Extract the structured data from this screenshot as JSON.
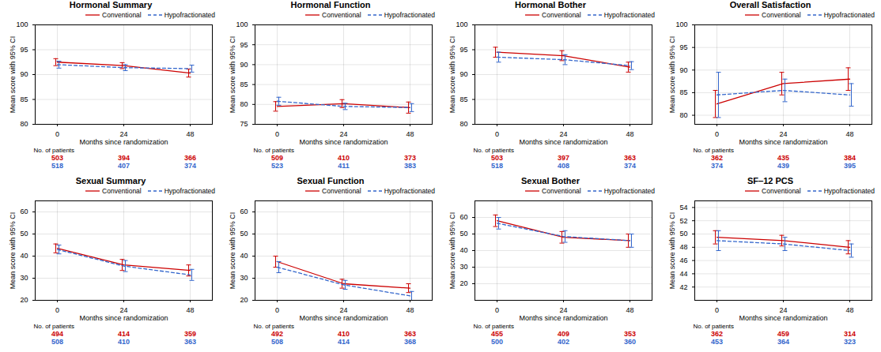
{
  "chart_data": [
    {
      "type": "line",
      "title": "Hormonal Summary",
      "xlabel": "Months since randomization",
      "ylabel": "Mean score with 95% CI",
      "x": [
        0,
        24,
        48
      ],
      "xlim": [
        -8,
        56
      ],
      "xticks": [
        0,
        24,
        48
      ],
      "ylim": [
        80,
        100
      ],
      "yticks": [
        80,
        85,
        90,
        95,
        100
      ],
      "grid": true,
      "legend": "upper right",
      "table_title": "No. of patients",
      "series": [
        {
          "name": "Conventional",
          "color": "#cc0000",
          "line_style": "solid",
          "values": [
            92.5,
            91.8,
            90.3
          ],
          "lower": [
            91.8,
            91.2,
            89.5
          ],
          "upper": [
            93.2,
            92.4,
            91.1
          ],
          "patients": [
            503,
            394,
            366
          ]
        },
        {
          "name": "Hypofractionated",
          "color": "#3366cc",
          "line_style": "dashed",
          "values": [
            92.0,
            91.4,
            91.2
          ],
          "lower": [
            91.3,
            90.8,
            90.5
          ],
          "upper": [
            92.7,
            92.0,
            91.9
          ],
          "patients": [
            518,
            407,
            374
          ]
        }
      ]
    },
    {
      "type": "line",
      "title": "Hormonal Function",
      "xlabel": "Months since randomization",
      "ylabel": "Mean score with 95% CI",
      "x": [
        0,
        24,
        48
      ],
      "xlim": [
        -8,
        56
      ],
      "xticks": [
        0,
        24,
        48
      ],
      "ylim": [
        75,
        100
      ],
      "yticks": [
        75,
        80,
        85,
        90,
        95,
        100
      ],
      "grid": true,
      "legend": "upper right",
      "table_title": "No. of patients",
      "series": [
        {
          "name": "Conventional",
          "color": "#cc0000",
          "line_style": "solid",
          "values": [
            79.5,
            80.2,
            79.2
          ],
          "lower": [
            78.3,
            79.2,
            77.8
          ],
          "upper": [
            80.7,
            81.2,
            80.6
          ],
          "patients": [
            509,
            410,
            373
          ]
        },
        {
          "name": "Hypofractionated",
          "color": "#3366cc",
          "line_style": "dashed",
          "values": [
            80.8,
            79.5,
            79.2
          ],
          "lower": [
            79.8,
            78.7,
            78.2
          ],
          "upper": [
            81.8,
            80.3,
            80.2
          ],
          "patients": [
            523,
            411,
            383
          ]
        }
      ]
    },
    {
      "type": "line",
      "title": "Hormonal Bother",
      "xlabel": "Months since randomization",
      "ylabel": "Mean score with 95% CI",
      "x": [
        0,
        24,
        48
      ],
      "xlim": [
        -8,
        56
      ],
      "xticks": [
        0,
        24,
        48
      ],
      "ylim": [
        80,
        100
      ],
      "yticks": [
        80,
        85,
        90,
        95,
        100
      ],
      "grid": true,
      "legend": "upper right",
      "table_title": "No. of patients",
      "series": [
        {
          "name": "Conventional",
          "color": "#cc0000",
          "line_style": "solid",
          "values": [
            94.5,
            93.8,
            91.5
          ],
          "lower": [
            93.5,
            92.8,
            90.5
          ],
          "upper": [
            95.5,
            94.8,
            92.5
          ],
          "patients": [
            503,
            397,
            363
          ]
        },
        {
          "name": "Hypofractionated",
          "color": "#3366cc",
          "line_style": "dashed",
          "values": [
            93.5,
            93.0,
            91.8
          ],
          "lower": [
            92.5,
            92.0,
            91.0
          ],
          "upper": [
            94.5,
            94.0,
            92.6
          ],
          "patients": [
            518,
            408,
            374
          ]
        }
      ]
    },
    {
      "type": "line",
      "title": "Overall Satisfaction",
      "xlabel": "Months since randomization",
      "ylabel": "Mean score with 95% CI",
      "x": [
        0,
        24,
        48
      ],
      "xlim": [
        -8,
        56
      ],
      "xticks": [
        0,
        24,
        48
      ],
      "ylim": [
        78,
        100
      ],
      "yticks": [
        80,
        85,
        90,
        95,
        100
      ],
      "grid": true,
      "legend": "upper right",
      "table_title": "No. of patients",
      "series": [
        {
          "name": "Conventional",
          "color": "#cc0000",
          "line_style": "solid",
          "values": [
            82.5,
            87.0,
            88.0
          ],
          "lower": [
            79.5,
            84.5,
            85.5
          ],
          "upper": [
            85.5,
            89.5,
            90.5
          ],
          "patients": [
            362,
            435,
            384
          ]
        },
        {
          "name": "Hypofractionated",
          "color": "#3366cc",
          "line_style": "dashed",
          "values": [
            84.5,
            85.5,
            84.5
          ],
          "lower": [
            79.5,
            83.0,
            82.0
          ],
          "upper": [
            89.5,
            88.0,
            87.0
          ],
          "patients": [
            374,
            439,
            395
          ]
        }
      ]
    },
    {
      "type": "line",
      "title": "Sexual Summary",
      "xlabel": "Months since randomization",
      "ylabel": "Mean score with 95% CI",
      "x": [
        0,
        24,
        48
      ],
      "xlim": [
        -8,
        56
      ],
      "xticks": [
        0,
        24,
        48
      ],
      "ylim": [
        20,
        65
      ],
      "yticks": [
        20,
        30,
        40,
        50,
        60
      ],
      "grid": true,
      "legend": "upper right",
      "table_title": "No. of patients",
      "series": [
        {
          "name": "Conventional",
          "color": "#cc0000",
          "line_style": "solid",
          "values": [
            43.5,
            36.0,
            33.5
          ],
          "lower": [
            41.5,
            33.5,
            31.0
          ],
          "upper": [
            45.5,
            38.5,
            36.0
          ],
          "patients": [
            494,
            414,
            359
          ]
        },
        {
          "name": "Hypofractionated",
          "color": "#3366cc",
          "line_style": "dashed",
          "values": [
            43.0,
            35.5,
            31.5
          ],
          "lower": [
            41.0,
            33.0,
            29.0
          ],
          "upper": [
            45.0,
            38.0,
            34.0
          ],
          "patients": [
            508,
            410,
            363
          ]
        }
      ]
    },
    {
      "type": "line",
      "title": "Sexual Function",
      "xlabel": "Months since randomization",
      "ylabel": "Mean score with 95% CI",
      "x": [
        0,
        24,
        48
      ],
      "xlim": [
        -8,
        56
      ],
      "xticks": [
        0,
        24,
        48
      ],
      "ylim": [
        20,
        65
      ],
      "yticks": [
        20,
        30,
        40,
        50,
        60
      ],
      "grid": true,
      "legend": "upper right",
      "table_title": "No. of patients",
      "series": [
        {
          "name": "Conventional",
          "color": "#cc0000",
          "line_style": "solid",
          "values": [
            37.5,
            27.5,
            25.5
          ],
          "lower": [
            35.0,
            25.5,
            23.5
          ],
          "upper": [
            40.0,
            29.5,
            27.5
          ],
          "patients": [
            492,
            410,
            363
          ]
        },
        {
          "name": "Hypofractionated",
          "color": "#3366cc",
          "line_style": "dashed",
          "values": [
            35.0,
            27.0,
            22.0
          ],
          "lower": [
            32.5,
            25.0,
            20.0
          ],
          "upper": [
            37.5,
            29.0,
            24.0
          ],
          "patients": [
            508,
            414,
            368
          ]
        }
      ]
    },
    {
      "type": "line",
      "title": "Sexual Bother",
      "xlabel": "Months since randomization",
      "ylabel": "Mean score with 95% CI",
      "x": [
        0,
        24,
        48
      ],
      "xlim": [
        -8,
        56
      ],
      "xticks": [
        0,
        24,
        48
      ],
      "ylim": [
        10,
        70
      ],
      "yticks": [
        20,
        30,
        40,
        50,
        60
      ],
      "grid": true,
      "legend": "upper right",
      "table_title": "No. of patients",
      "series": [
        {
          "name": "Conventional",
          "color": "#cc0000",
          "line_style": "solid",
          "values": [
            58.0,
            48.0,
            46.0
          ],
          "lower": [
            54.5,
            44.5,
            42.0
          ],
          "upper": [
            61.5,
            51.5,
            50.0
          ],
          "patients": [
            455,
            409,
            353
          ]
        },
        {
          "name": "Hypofractionated",
          "color": "#3366cc",
          "line_style": "dashed",
          "values": [
            56.5,
            48.5,
            46.0
          ],
          "lower": [
            53.0,
            45.0,
            42.0
          ],
          "upper": [
            60.0,
            52.0,
            50.0
          ],
          "patients": [
            500,
            402,
            360
          ]
        }
      ]
    },
    {
      "type": "line",
      "title": "SF‒12 PCS",
      "xlabel": "Months since randomization",
      "ylabel": "Mean score with 95% CI",
      "x": [
        0,
        24,
        48
      ],
      "xlim": [
        -8,
        56
      ],
      "xticks": [
        0,
        24,
        48
      ],
      "ylim": [
        40,
        55
      ],
      "yticks": [
        42,
        44,
        46,
        48,
        50,
        52,
        54
      ],
      "grid": true,
      "legend": "upper right",
      "table_title": "No. of patients",
      "series": [
        {
          "name": "Conventional",
          "color": "#cc0000",
          "line_style": "solid",
          "values": [
            49.5,
            49.0,
            48.0
          ],
          "lower": [
            48.5,
            48.2,
            47.0
          ],
          "upper": [
            50.5,
            49.8,
            49.0
          ],
          "patients": [
            362,
            459,
            314
          ]
        },
        {
          "name": "Hypofractionated",
          "color": "#3366cc",
          "line_style": "dashed",
          "values": [
            49.0,
            48.5,
            47.5
          ],
          "lower": [
            47.5,
            47.5,
            46.5
          ],
          "upper": [
            50.5,
            49.5,
            48.5
          ],
          "patients": [
            453,
            364,
            323
          ]
        }
      ]
    }
  ]
}
